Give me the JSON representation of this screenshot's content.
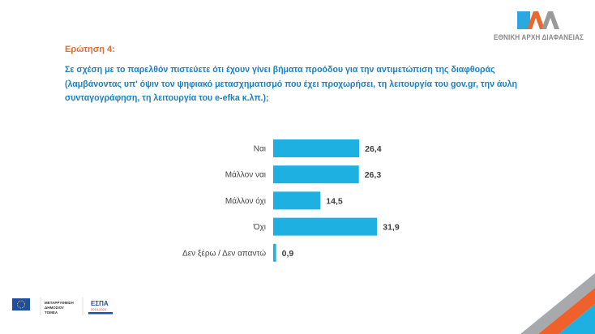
{
  "header": {
    "question_number": "Ερώτηση 4:",
    "question_text": "Σε σχέση με το παρελθόν πιστεύετε ότι έχουν γίνει βήματα προόδου για την αντιμετώπιση της διαφθοράς (λαμβάνοντας υπ' όψιν τον ψηφιακό μετασχηματισμό που έχει προχωρήσει, τη λειτουργία του gov.gr, την άυλη συνταγογράφηση, τη λειτουργία του e-efka κ.λπ.);",
    "logo_text": "ΕΘΝΙΚΗ ΑΡΧΗ ΔΙΑΦΑΝΕΙΑΣ"
  },
  "footer": {
    "logo_reform_text": "ΜΕΤΑΡΡΥΘΜΙΣΗ ΔΗΜΟΣΙΟΥ ΤΟΜΕΑ",
    "logo_espa_text": "ΕΣΠΑ 2014-2020"
  },
  "colors": {
    "bar": "#1fb0e2",
    "accent_orange": "#e8692e",
    "question_blue": "#1b7fc2",
    "stripe_gray": "#a7a9ac",
    "stripe_blue": "#1fb0e2"
  },
  "chart_data": {
    "type": "bar",
    "orientation": "horizontal",
    "categories": [
      "Ναι",
      "Μάλλον ναι",
      "Μάλλον όχι",
      "Όχι",
      "Δεν ξέρω / Δεν απαντώ"
    ],
    "values": [
      26.4,
      26.3,
      14.5,
      31.9,
      0.9
    ],
    "data_labels": [
      "26,4",
      "26,3",
      "14,5",
      "31,9",
      "0,9"
    ],
    "grid": false,
    "legend": "none"
  }
}
